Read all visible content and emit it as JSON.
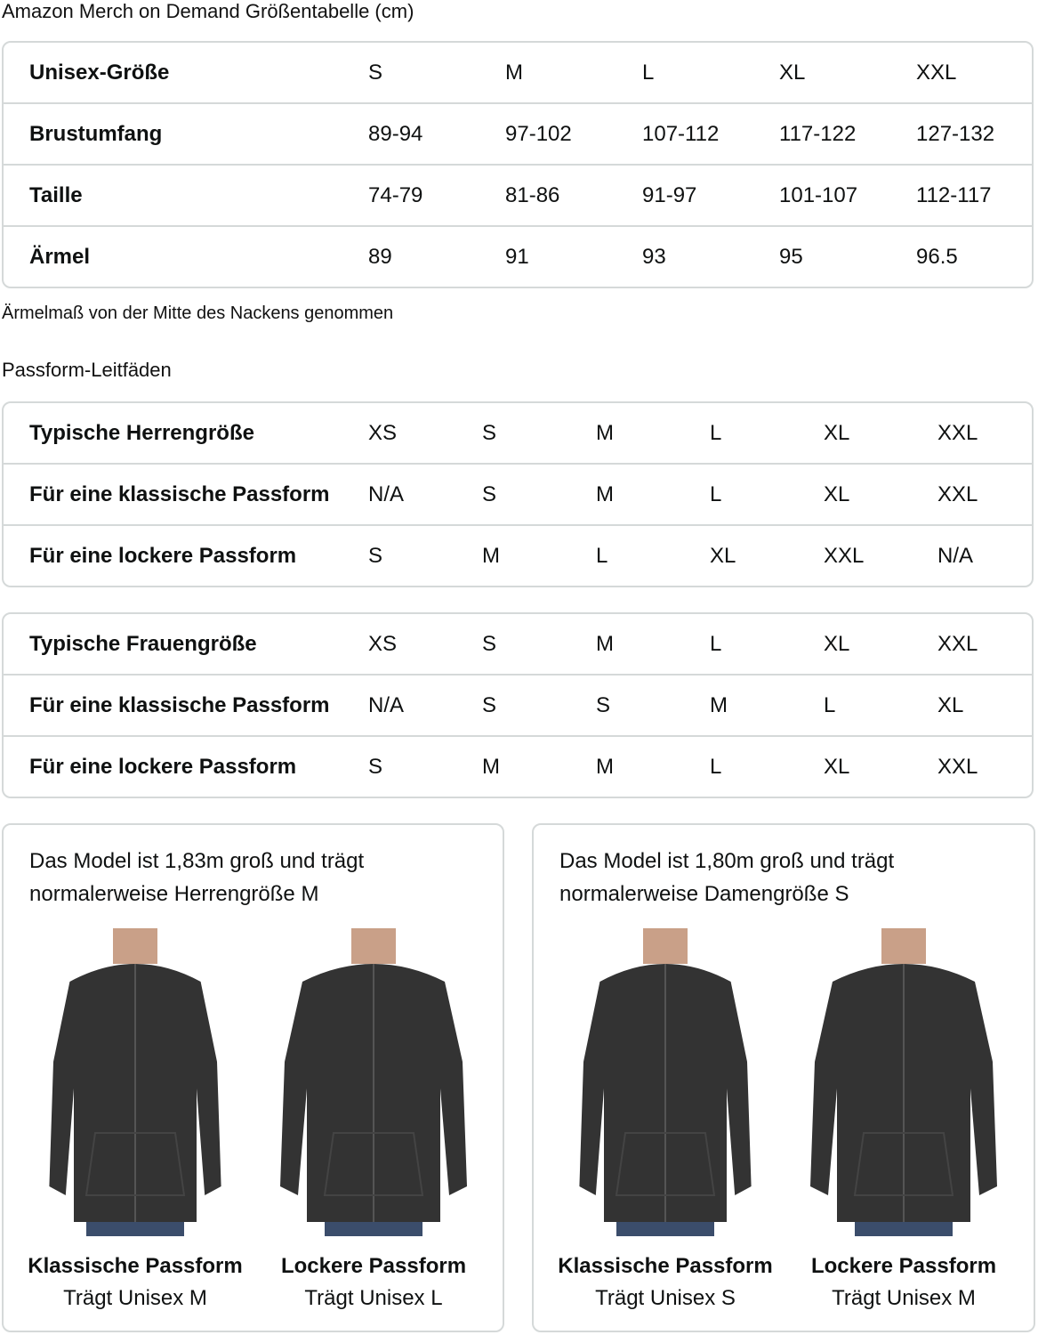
{
  "title": "Amazon Merch on Demand Größentabelle (cm)",
  "size_table": {
    "rows": [
      [
        "Unisex-Größe",
        "S",
        "M",
        "L",
        "XL",
        "XXL"
      ],
      [
        "Brustumfang",
        "89-94",
        "97-102",
        "107-112",
        "117-122",
        "127-132"
      ],
      [
        "Taille",
        "74-79",
        "81-86",
        "91-97",
        "101-107",
        "112-117"
      ],
      [
        "Ärmel",
        "89",
        "91",
        "93",
        "95",
        "96.5"
      ]
    ]
  },
  "note": "Ärmelmaß von der Mitte des Nackens genommen",
  "fit_title": "Passform-Leitfäden",
  "men_table": {
    "rows": [
      [
        "Typische Herrengröße",
        "XS",
        "S",
        "M",
        "L",
        "XL",
        "XXL"
      ],
      [
        "Für eine klassische Passform",
        "N/A",
        "S",
        "M",
        "L",
        "XL",
        "XXL"
      ],
      [
        "Für eine lockere Passform",
        "S",
        "M",
        "L",
        "XL",
        "XXL",
        "N/A"
      ]
    ]
  },
  "women_table": {
    "rows": [
      [
        "Typische Frauengröße",
        "XS",
        "S",
        "M",
        "L",
        "XL",
        "XXL"
      ],
      [
        "Für eine klassische Passform",
        "N/A",
        "S",
        "S",
        "M",
        "L",
        "XL"
      ],
      [
        "Für eine lockere Passform",
        "S",
        "M",
        "M",
        "L",
        "XL",
        "XXL"
      ]
    ]
  },
  "cards": [
    {
      "text": "Das Model ist 1,83m groß und trägt normalerweise Herrengröße M",
      "figures": [
        {
          "title": "Klassische Passform",
          "sub": "Trägt Unisex M"
        },
        {
          "title": "Lockere Passform",
          "sub": "Trägt Unisex L"
        }
      ]
    },
    {
      "text": "Das Model ist 1,80m groß und trägt normalerweise Damengröße S",
      "figures": [
        {
          "title": "Klassische Passform",
          "sub": "Trägt Unisex S"
        },
        {
          "title": "Lockere Passform",
          "sub": "Trägt Unisex M"
        }
      ]
    }
  ],
  "colors": {
    "border": "#d5d9d9",
    "hoodie": "#333333",
    "jeans": "#3b4d6b"
  }
}
